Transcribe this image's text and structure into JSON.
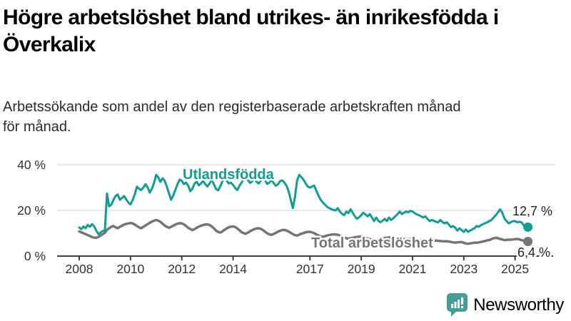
{
  "page": {
    "title_lines": [
      "Högre arbetslöshet bland utrikes- än inrikesfödda i",
      "Överkalix"
    ],
    "subtitle_lines": [
      "Arbetssökande som andel av den registerbaserade arbetskraften månad",
      "för månad."
    ]
  },
  "chart_data": {
    "type": "line",
    "title": "Högre arbetslöshet bland utrikes- än inrikesfödda i Överkalix",
    "subtitle": "Arbetssökande som andel av den registerbaserade arbetskraften månad för månad.",
    "unit": "%",
    "frequency": "monthly",
    "start_year": 2008,
    "start_month": 1,
    "xlabel": "",
    "ylabel": "",
    "ylim": [
      0,
      42
    ],
    "grid": "horizontal",
    "legend_position": "inline-labels",
    "yticks": [
      {
        "value": 0,
        "label": "0 %"
      },
      {
        "value": 20,
        "label": "20 %"
      },
      {
        "value": 40,
        "label": "40 %"
      }
    ],
    "xticks": [
      {
        "value": 2008,
        "label": "2008"
      },
      {
        "value": 2010,
        "label": "2010"
      },
      {
        "value": 2012,
        "label": "2012"
      },
      {
        "value": 2014,
        "label": "2014"
      },
      {
        "value": 2017,
        "label": "2017"
      },
      {
        "value": 2019,
        "label": "2019"
      },
      {
        "value": 2021,
        "label": "2021"
      },
      {
        "value": 2023,
        "label": "2023"
      },
      {
        "value": 2025,
        "label": "2025"
      }
    ],
    "series": [
      {
        "name": "Utlandsfödda",
        "color": "#0f9e93",
        "end_label": "12,7 %",
        "end_value": 12.7,
        "values": [
          12.5,
          11.8,
          13.0,
          12.2,
          13.7,
          12.8,
          14.0,
          13.0,
          11.2,
          9.6,
          10.3,
          11.0,
          11.0,
          27.4,
          21.8,
          22.5,
          24.5,
          26.3,
          27.0,
          24.7,
          25.4,
          26.3,
          24.8,
          23.5,
          22.6,
          24.5,
          27.0,
          30.4,
          29.5,
          28.9,
          30.0,
          31.5,
          30.2,
          27.8,
          29.5,
          32.0,
          35.6,
          34.5,
          32.5,
          34.1,
          33.0,
          30.5,
          27.5,
          24.7,
          26.5,
          29.0,
          31.5,
          33.5,
          33.0,
          31.5,
          32.2,
          30.8,
          28.4,
          29.5,
          31.8,
          32.5,
          31.0,
          31.8,
          33.0,
          31.5,
          30.5,
          31.8,
          33.5,
          31.5,
          29.4,
          28.8,
          30.5,
          32.8,
          34.2,
          33.0,
          31.8,
          32.2,
          31.2,
          29.8,
          28.9,
          30.8,
          32.2,
          33.8,
          34.6,
          33.2,
          32.0,
          32.8,
          34.0,
          32.6,
          31.8,
          33.0,
          34.3,
          33.2,
          31.6,
          32.2,
          33.4,
          32.0,
          30.8,
          31.4,
          32.8,
          33.2,
          32.2,
          30.8,
          28.4,
          24.8,
          21.0,
          26.0,
          33.2,
          35.6,
          34.6,
          33.4,
          31.8,
          30.4,
          30.0,
          30.5,
          30.9,
          28.5,
          26.5,
          24.7,
          23.5,
          22.6,
          21.6,
          21.0,
          20.6,
          20.2,
          20.0,
          21.0,
          19.5,
          18.5,
          17.9,
          19.5,
          18.8,
          20.5,
          19.0,
          17.5,
          16.3,
          17.0,
          17.9,
          19.0,
          18.2,
          17.4,
          18.4,
          16.9,
          15.3,
          16.9,
          15.5,
          14.8,
          15.5,
          16.3,
          15.3,
          16.9,
          15.8,
          16.5,
          17.5,
          18.4,
          19.5,
          18.4,
          19.0,
          19.5,
          19.2,
          19.8,
          19.5,
          18.8,
          18.3,
          17.9,
          17.4,
          16.9,
          17.4,
          16.3,
          15.3,
          15.8,
          15.5,
          15.0,
          14.8,
          15.8,
          14.9,
          14.3,
          14.8,
          13.8,
          12.7,
          13.2,
          12.4,
          11.2,
          12.2,
          11.4,
          10.6,
          11.7,
          10.6,
          11.2,
          11.7,
          12.2,
          13.2,
          12.8,
          13.5,
          14.0,
          14.4,
          14.8,
          15.3,
          15.8,
          16.9,
          17.9,
          19.2,
          20.5,
          19.0,
          16.5,
          15.3,
          14.3,
          14.8,
          15.3,
          15.3,
          14.8,
          15.0,
          14.8,
          13.5,
          12.2,
          12.7
        ]
      },
      {
        "name": "Total arbetslöshet",
        "color": "#757575",
        "end_label": "6,4 %",
        "end_value": 6.4,
        "values": [
          10.8,
          10.4,
          10.0,
          9.6,
          9.2,
          8.8,
          8.3,
          8.1,
          8.0,
          8.4,
          9.0,
          9.6,
          10.2,
          11.5,
          12.2,
          12.8,
          13.2,
          12.6,
          12.2,
          12.8,
          13.3,
          13.8,
          14.1,
          14.3,
          14.5,
          14.3,
          13.8,
          13.2,
          12.6,
          12.2,
          12.8,
          13.4,
          14.0,
          14.6,
          15.1,
          15.5,
          15.8,
          15.5,
          15.0,
          14.2,
          13.4,
          12.8,
          12.4,
          12.8,
          13.3,
          13.8,
          14.2,
          14.4,
          14.3,
          13.9,
          13.2,
          12.4,
          11.8,
          11.4,
          11.8,
          12.4,
          12.9,
          13.3,
          13.6,
          13.8,
          13.9,
          13.6,
          13.0,
          12.2,
          11.2,
          10.6,
          10.3,
          10.8,
          11.5,
          12.1,
          12.6,
          12.9,
          13.0,
          12.7,
          12.1,
          11.3,
          10.5,
          10.0,
          9.8,
          10.3,
          10.9,
          11.4,
          11.8,
          12.1,
          12.2,
          11.9,
          11.4,
          10.7,
          10.0,
          9.5,
          9.3,
          9.7,
          10.2,
          10.7,
          11.1,
          11.4,
          11.5,
          11.2,
          10.8,
          10.2,
          9.6,
          9.2,
          9.0,
          9.4,
          9.8,
          10.1,
          10.4,
          10.6,
          10.6,
          10.4,
          10.0,
          9.5,
          9.0,
          8.6,
          8.4,
          8.7,
          9.0,
          9.2,
          9.4,
          9.5,
          9.5,
          9.3,
          9.0,
          8.6,
          8.2,
          7.8,
          7.6,
          7.8,
          8.0,
          8.2,
          8.4,
          8.5,
          8.5,
          8.3,
          8.0,
          7.7,
          7.4,
          7.2,
          7.0,
          7.2,
          7.4,
          7.6,
          7.8,
          7.9,
          8.0,
          8.2,
          8.3,
          8.2,
          8.0,
          7.8,
          7.6,
          7.5,
          7.4,
          7.4,
          7.5,
          7.5,
          7.5,
          7.4,
          7.2,
          7.0,
          6.9,
          6.7,
          6.6,
          6.6,
          6.7,
          6.7,
          6.8,
          6.8,
          6.7,
          6.6,
          6.5,
          6.5,
          6.5,
          6.4,
          6.2,
          6.0,
          5.9,
          6.0,
          6.1,
          6.2,
          5.8,
          5.5,
          5.4,
          5.6,
          5.7,
          5.9,
          5.8,
          6.0,
          6.2,
          6.4,
          6.6,
          6.9,
          7.0,
          7.5,
          7.8,
          8.0,
          7.8,
          7.5,
          7.3,
          7.0,
          7.1,
          7.2,
          7.2,
          7.3,
          7.4,
          7.5,
          7.3,
          7.0,
          6.8,
          6.5,
          6.4
        ]
      }
    ],
    "colors": {
      "grid": "#dcdcdc",
      "axis": "#3f3f3f",
      "tick_text": "#333333",
      "annotation_text": "#222222"
    }
  },
  "branding": {
    "logo_text": "Newsworthy",
    "color": "#459d98"
  }
}
